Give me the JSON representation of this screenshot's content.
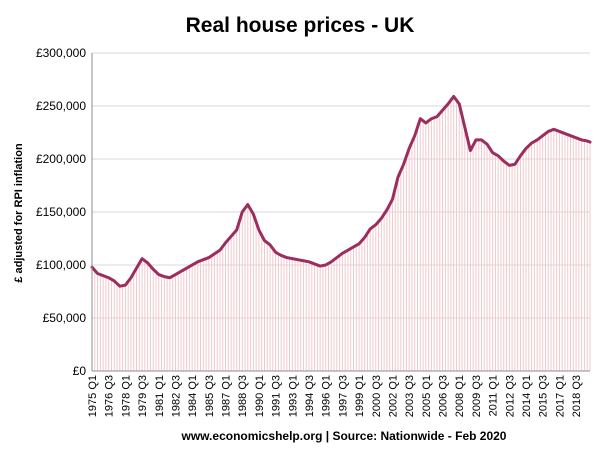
{
  "chart_data": {
    "type": "area",
    "title": "Real house prices - UK",
    "ylabel": "£ adjusted for RPI inflation",
    "source_note": "www.economicshelp.org | Source: Nationwide - Feb 2020",
    "ylim": [
      0,
      300000
    ],
    "yticks": [
      0,
      50000,
      100000,
      150000,
      200000,
      250000,
      300000
    ],
    "ytick_labels": [
      "£0",
      "£50,000",
      "£100,000",
      "£150,000",
      "£200,000",
      "£250,000",
      "£300,000"
    ],
    "xtick_labels": [
      "1975 Q1",
      "1976 Q3",
      "1978 Q1",
      "1979 Q3",
      "1981 Q1",
      "1982 Q3",
      "1984 Q1",
      "1985 Q3",
      "1987 Q1",
      "1988 Q3",
      "1990 Q1",
      "1991 Q3",
      "1993 Q1",
      "1994 Q3",
      "1996 Q1",
      "1997 Q3",
      "1999 Q1",
      "2000 Q3",
      "2002 Q1",
      "2003 Q3",
      "2005 Q1",
      "2006 Q3",
      "2008 Q1",
      "2009 Q3",
      "2011 Q1",
      "2012 Q3",
      "2014 Q1",
      "2015 Q3",
      "2017 Q1",
      "2018 Q3"
    ],
    "series": [
      {
        "color": "#9b2d5f",
        "fill_color": "#f0c8cc",
        "points": [
          [
            "1975 Q1",
            98000
          ],
          [
            "1975 Q3",
            92000
          ],
          [
            "1976 Q3",
            88000
          ],
          [
            "1977 Q1",
            85000
          ],
          [
            "1977 Q3",
            80000
          ],
          [
            "1978 Q1",
            81000
          ],
          [
            "1978 Q3",
            88000
          ],
          [
            "1979 Q1",
            97000
          ],
          [
            "1979 Q3",
            106000
          ],
          [
            "1980 Q1",
            102000
          ],
          [
            "1980 Q3",
            96000
          ],
          [
            "1981 Q1",
            91000
          ],
          [
            "1981 Q3",
            89000
          ],
          [
            "1982 Q1",
            88000
          ],
          [
            "1982 Q3",
            91000
          ],
          [
            "1983 Q3",
            97000
          ],
          [
            "1984 Q3",
            103000
          ],
          [
            "1985 Q3",
            107000
          ],
          [
            "1986 Q3",
            114000
          ],
          [
            "1987 Q1",
            121000
          ],
          [
            "1987 Q3",
            127000
          ],
          [
            "1988 Q1",
            133000
          ],
          [
            "1988 Q3",
            150000
          ],
          [
            "1989 Q1",
            157000
          ],
          [
            "1989 Q3",
            148000
          ],
          [
            "1990 Q1",
            133000
          ],
          [
            "1990 Q3",
            123000
          ],
          [
            "1991 Q1",
            119000
          ],
          [
            "1991 Q3",
            112000
          ],
          [
            "1992 Q1",
            109000
          ],
          [
            "1992 Q3",
            107000
          ],
          [
            "1993 Q1",
            106000
          ],
          [
            "1993 Q3",
            105000
          ],
          [
            "1994 Q1",
            104000
          ],
          [
            "1994 Q3",
            103000
          ],
          [
            "1995 Q1",
            101000
          ],
          [
            "1995 Q3",
            99000
          ],
          [
            "1996 Q1",
            100000
          ],
          [
            "1996 Q3",
            103000
          ],
          [
            "1997 Q1",
            107000
          ],
          [
            "1997 Q3",
            111000
          ],
          [
            "1998 Q1",
            114000
          ],
          [
            "1998 Q3",
            117000
          ],
          [
            "1999 Q1",
            120000
          ],
          [
            "1999 Q3",
            126000
          ],
          [
            "2000 Q1",
            134000
          ],
          [
            "2000 Q3",
            138000
          ],
          [
            "2001 Q1",
            144000
          ],
          [
            "2001 Q3",
            152000
          ],
          [
            "2002 Q1",
            162000
          ],
          [
            "2002 Q3",
            183000
          ],
          [
            "2003 Q1",
            195000
          ],
          [
            "2003 Q3",
            210000
          ],
          [
            "2004 Q1",
            222000
          ],
          [
            "2004 Q3",
            238000
          ],
          [
            "2005 Q1",
            234000
          ],
          [
            "2005 Q3",
            238000
          ],
          [
            "2006 Q1",
            240000
          ],
          [
            "2006 Q3",
            246000
          ],
          [
            "2007 Q1",
            252000
          ],
          [
            "2007 Q3",
            259000
          ],
          [
            "2008 Q1",
            252000
          ],
          [
            "2008 Q3",
            230000
          ],
          [
            "2009 Q1",
            208000
          ],
          [
            "2009 Q3",
            218000
          ],
          [
            "2010 Q1",
            218000
          ],
          [
            "2010 Q3",
            214000
          ],
          [
            "2011 Q1",
            206000
          ],
          [
            "2011 Q3",
            203000
          ],
          [
            "2012 Q1",
            198000
          ],
          [
            "2012 Q3",
            194000
          ],
          [
            "2013 Q1",
            195000
          ],
          [
            "2013 Q3",
            203000
          ],
          [
            "2014 Q1",
            210000
          ],
          [
            "2014 Q3",
            215000
          ],
          [
            "2015 Q1",
            218000
          ],
          [
            "2015 Q3",
            222000
          ],
          [
            "2016 Q1",
            226000
          ],
          [
            "2016 Q3",
            228000
          ],
          [
            "2017 Q1",
            226000
          ],
          [
            "2017 Q3",
            224000
          ],
          [
            "2018 Q1",
            222000
          ],
          [
            "2018 Q3",
            220000
          ],
          [
            "2019 Q1",
            218000
          ],
          [
            "2019 Q3",
            217000
          ],
          [
            "2019 Q4",
            216000
          ]
        ]
      }
    ]
  }
}
